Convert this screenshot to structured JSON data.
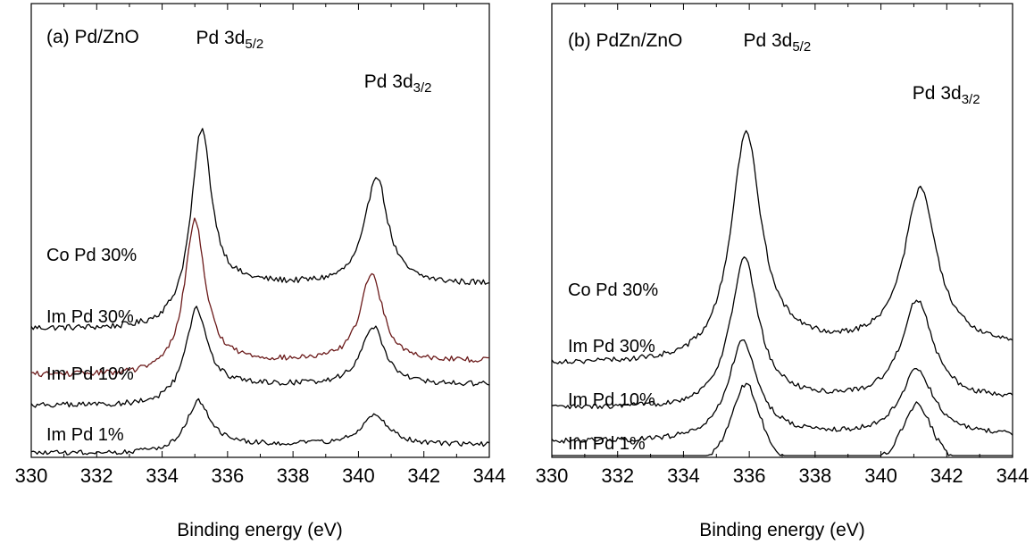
{
  "chart_data": [
    {
      "type": "line",
      "panel_label": "(a) Pd/ZnO",
      "xlabel": "Binding energy (eV)",
      "ylabel": "",
      "xlim": [
        330,
        344
      ],
      "xticks": [
        330,
        332,
        334,
        336,
        338,
        340,
        342,
        344
      ],
      "y_axis": "arbitrary intensity, stacked curves, no tick labels",
      "grid": false,
      "peak_labels": [
        {
          "main": "Pd 3d",
          "sub": "5/2",
          "x": 335.2
        },
        {
          "main": "Pd 3d",
          "sub": "3/2",
          "x": 340.5
        }
      ],
      "series": [
        {
          "name": "Co Pd 30%",
          "color": "#000000",
          "baseline": 0.73,
          "peaks": [
            {
              "center": 335.2,
              "height": 1.03,
              "width": 0.48
            },
            {
              "center": 340.55,
              "height": 0.63,
              "width": 0.52
            }
          ],
          "tail": 0.26,
          "noise": 0.018
        },
        {
          "name": "Im Pd 30%",
          "color": "#6b1a1a",
          "baseline": 0.46,
          "peaks": [
            {
              "center": 335.0,
              "height": 0.86,
              "width": 0.48
            },
            {
              "center": 340.4,
              "height": 0.51,
              "width": 0.52
            }
          ],
          "tail": 0.08,
          "noise": 0.016
        },
        {
          "name": "Im Pd 10%",
          "color": "#000000",
          "baseline": 0.28,
          "peaks": [
            {
              "center": 335.05,
              "height": 0.5,
              "width": 0.5
            },
            {
              "center": 340.45,
              "height": 0.34,
              "width": 0.55
            }
          ],
          "tail": 0.12,
          "noise": 0.016
        },
        {
          "name": "Im Pd 1%",
          "color": "#000000",
          "baseline": 0.0,
          "peaks": [
            {
              "center": 335.1,
              "height": 0.28,
              "width": 0.55
            },
            {
              "center": 340.5,
              "height": 0.18,
              "width": 0.6
            }
          ],
          "tail": 0.05,
          "noise": 0.014
        }
      ]
    },
    {
      "type": "line",
      "panel_label": "(b) PdZn/ZnO",
      "xlabel": "Binding energy (eV)",
      "ylabel": "",
      "xlim": [
        330,
        344
      ],
      "xticks": [
        330,
        332,
        334,
        336,
        338,
        340,
        342,
        344
      ],
      "y_axis": "arbitrary intensity, stacked curves, no tick labels",
      "grid": false,
      "peak_labels": [
        {
          "main": "Pd 3d",
          "sub": "5/2",
          "x": 335.9
        },
        {
          "main": "Pd 3d",
          "sub": "3/2",
          "x": 341.2
        }
      ],
      "series": [
        {
          "name": "Co Pd 30%",
          "color": "#000000",
          "baseline": 0.6,
          "peaks": [
            {
              "center": 335.9,
              "height": 1.45,
              "width": 0.7
            },
            {
              "center": 341.2,
              "height": 1.02,
              "width": 0.75
            }
          ],
          "tail": 0.12,
          "noise": 0.018
        },
        {
          "name": "Im Pd 30%",
          "color": "#000000",
          "baseline": 0.3,
          "peaks": [
            {
              "center": 335.85,
              "height": 0.95,
              "width": 0.65
            },
            {
              "center": 341.1,
              "height": 0.65,
              "width": 0.72
            }
          ],
          "tail": 0.06,
          "noise": 0.018
        },
        {
          "name": "Im Pd 10%",
          "color": "#000000",
          "baseline": 0.08,
          "peaks": [
            {
              "center": 335.8,
              "height": 0.63,
              "width": 0.7
            },
            {
              "center": 341.1,
              "height": 0.43,
              "width": 0.75
            }
          ],
          "tail": 0.04,
          "noise": 0.017
        },
        {
          "name": "Im Pd 1%",
          "color": "#000000",
          "baseline": -0.15,
          "peaks": [
            {
              "center": 335.9,
              "height": 0.6,
              "width": 0.75
            },
            {
              "center": 341.1,
              "height": 0.47,
              "width": 0.8
            }
          ],
          "tail": 0.0,
          "noise": 0.018
        }
      ]
    }
  ]
}
